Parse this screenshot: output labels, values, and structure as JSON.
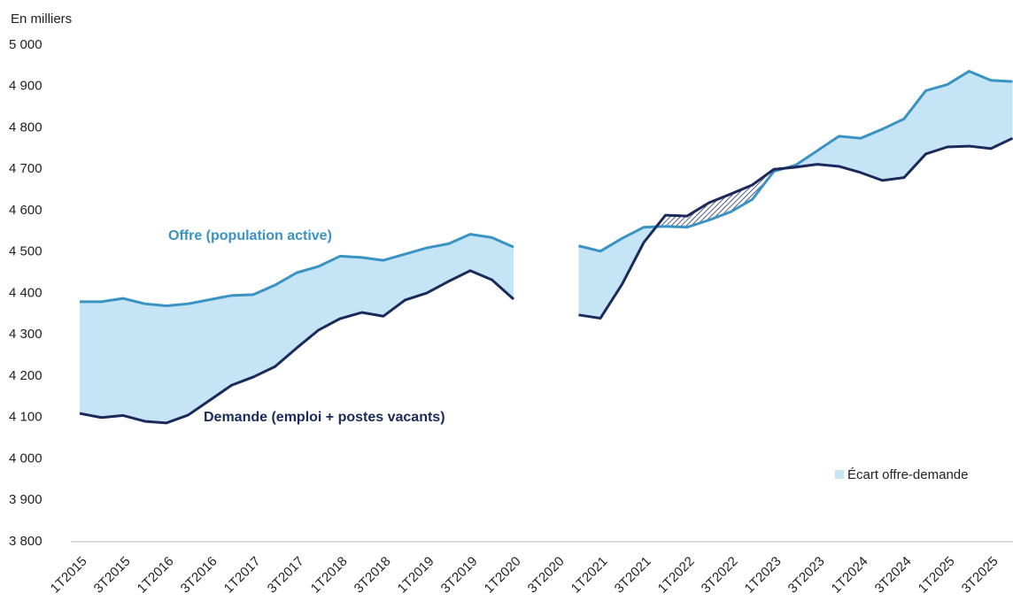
{
  "chart_data": {
    "type": "line",
    "y_axis_label": "En milliers",
    "categories": [
      "1T2015",
      null,
      "3T2015",
      null,
      "1T2016",
      null,
      "3T2016",
      null,
      "1T2017",
      null,
      "3T2017",
      null,
      "1T2018",
      null,
      "3T2018",
      null,
      "1T2019",
      null,
      "3T2019",
      null,
      "1T2020",
      null,
      "3T2020",
      null,
      "1T2021",
      null,
      "3T2021",
      null,
      "1T2022",
      null,
      "3T2022",
      null,
      "1T2023",
      null,
      "3T2023",
      null,
      "1T2024",
      null,
      "3T2024",
      null,
      "1T2025",
      null,
      "3T2025",
      null
    ],
    "series": [
      {
        "name": "Offre (population active)",
        "color": "#3a93c3",
        "values": [
          4380,
          4380,
          4388,
          4375,
          4370,
          4375,
          4385,
          4395,
          4397,
          4420,
          4450,
          4465,
          4490,
          4487,
          4480,
          4495,
          4510,
          4520,
          4543,
          4535,
          4512,
          null,
          null,
          4515,
          4502,
          4533,
          4560,
          4562,
          4560,
          4577,
          4597,
          4627,
          4695,
          4710,
          4745,
          4780,
          4775,
          4797,
          4822,
          4890,
          4905,
          4937,
          4915,
          4912
        ]
      },
      {
        "name": "Demande (emploi + postes vacants)",
        "color": "#1b2a5b",
        "values": [
          4110,
          4100,
          4105,
          4091,
          4087,
          4106,
          4142,
          4178,
          4198,
          4223,
          4268,
          4311,
          4339,
          4354,
          4345,
          4384,
          4401,
          4429,
          4455,
          4433,
          4386,
          null,
          null,
          4348,
          4340,
          4422,
          4523,
          4589,
          4587,
          4619,
          4640,
          4662,
          4700,
          4705,
          4712,
          4707,
          4692,
          4673,
          4680,
          4737,
          4754,
          4756,
          4750,
          4775
        ]
      }
    ],
    "area_legend": "Écart offre-demande",
    "area_color": "#c5e4f5",
    "ylim": [
      3800,
      5000
    ],
    "yticks": [
      {
        "value": 3800,
        "label": "3 800"
      },
      {
        "value": 3900,
        "label": "3 900"
      },
      {
        "value": 4000,
        "label": "4 000"
      },
      {
        "value": 4100,
        "label": "4 100"
      },
      {
        "value": 4200,
        "label": "4 200"
      },
      {
        "value": 4300,
        "label": "4 300"
      },
      {
        "value": 4400,
        "label": "4 400"
      },
      {
        "value": 4500,
        "label": "4 500"
      },
      {
        "value": 4600,
        "label": "4 600"
      },
      {
        "value": 4700,
        "label": "4 700"
      },
      {
        "value": 4800,
        "label": "4 800"
      },
      {
        "value": 4900,
        "label": "4 900"
      },
      {
        "value": 5000,
        "label": "5 000"
      }
    ],
    "grid": false,
    "legend": "lower right"
  }
}
